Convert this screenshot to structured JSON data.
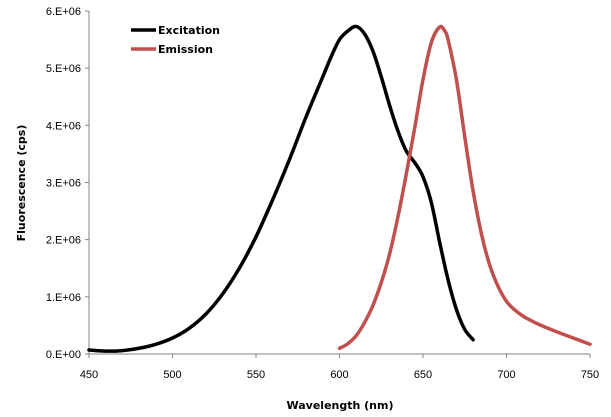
{
  "chart_data": {
    "type": "line",
    "title": "",
    "xlabel": "Wavelength (nm)",
    "ylabel": "Fluorescence (cps)",
    "xlim": [
      450,
      750
    ],
    "ylim": [
      0,
      6000000
    ],
    "x_ticks": [
      450,
      500,
      550,
      600,
      650,
      700,
      750
    ],
    "x_tick_labels": [
      "450",
      "500",
      "550",
      "600",
      "650",
      "700",
      "750"
    ],
    "y_ticks": [
      0,
      1000000,
      2000000,
      3000000,
      4000000,
      5000000,
      6000000
    ],
    "y_tick_labels": [
      "0.E+00",
      "1.E+06",
      "2.E+06",
      "3.E+06",
      "4.E+06",
      "5.E+06",
      "6.E+06"
    ],
    "grid": false,
    "legend_position": "top-left",
    "series": [
      {
        "name": "Excitation",
        "color": "#000000",
        "x": [
          450,
          460,
          470,
          480,
          490,
          500,
          510,
          520,
          530,
          540,
          550,
          560,
          570,
          580,
          590,
          595,
          600,
          605,
          610,
          615,
          620,
          625,
          630,
          635,
          640,
          645,
          650,
          655,
          660,
          665,
          670,
          675,
          680
        ],
        "y": [
          70000,
          50000,
          60000,
          100000,
          170000,
          280000,
          450000,
          700000,
          1050000,
          1500000,
          2050000,
          2700000,
          3400000,
          4150000,
          4850000,
          5200000,
          5500000,
          5650000,
          5730000,
          5600000,
          5300000,
          4850000,
          4350000,
          3900000,
          3550000,
          3350000,
          3100000,
          2650000,
          1950000,
          1300000,
          780000,
          430000,
          250000
        ]
      },
      {
        "name": "Emission",
        "color": "#C0504D",
        "x": [
          600,
          605,
          610,
          615,
          620,
          625,
          630,
          635,
          640,
          645,
          650,
          655,
          660,
          663,
          665,
          670,
          675,
          680,
          685,
          690,
          695,
          700,
          705,
          710,
          715,
          720,
          730,
          740,
          750
        ],
        "y": [
          100000,
          180000,
          320000,
          550000,
          850000,
          1250000,
          1750000,
          2400000,
          3150000,
          3950000,
          4800000,
          5450000,
          5720000,
          5650000,
          5500000,
          4800000,
          3800000,
          2850000,
          2100000,
          1550000,
          1180000,
          920000,
          770000,
          660000,
          580000,
          510000,
          390000,
          280000,
          170000
        ]
      }
    ]
  }
}
